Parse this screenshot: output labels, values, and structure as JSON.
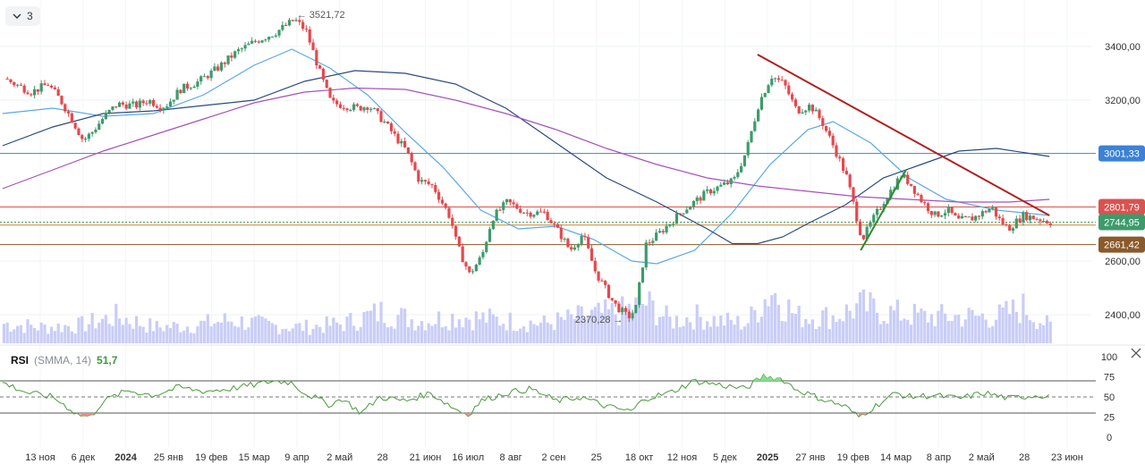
{
  "toolbar": {
    "collapse_count": "3",
    "collapse_icon": "chevron-down-icon"
  },
  "rsi": {
    "name": "RSI",
    "params": "(SMMA, 14)",
    "value": "51,7",
    "levels": [
      70,
      50,
      30
    ],
    "axis_ticks": [
      "100",
      "75",
      "50",
      "25",
      "0"
    ]
  },
  "colors": {
    "up": "#3d9b6b",
    "down": "#e5484d",
    "volume": "#c9cdf6",
    "ma_fast": "#5aa9e6",
    "ma_mid": "#2b4b7e",
    "ma_slow": "#a652b8",
    "rsi_line": "#4a9a3a",
    "trend_down": "#b21f1f",
    "trend_up": "#2e8b2e",
    "level_blue": "#3b82d6",
    "level_red": "#d9534f",
    "level_orange": "#d9822b",
    "level_brown": "#8b5a2b",
    "dotted": "#3d9b6b"
  },
  "chart_data": {
    "type": "line",
    "title": "",
    "y_ticks": [
      "3400,00",
      "3200,00",
      "2600,00",
      "2400,00"
    ],
    "y_tick_values": [
      3400,
      3200,
      2600,
      2400
    ],
    "x_ticks": [
      "13 ноя",
      "6 дек",
      "2024",
      "25 янв",
      "19 фев",
      "15 мар",
      "9 апр",
      "2 май",
      "28",
      "21 июн",
      "16 июл",
      "8 авг",
      "2 сен",
      "25",
      "18 окт",
      "12 ноя",
      "5 дек",
      "2025",
      "27 янв",
      "19 фев",
      "14 мар",
      "8 апр",
      "2 май",
      "28",
      "23 июн"
    ],
    "bold_ticks": [
      "2024",
      "2025"
    ],
    "price_labels": [
      {
        "value": 3001.33,
        "text": "3001,33",
        "style": "level-blue"
      },
      {
        "value": 2801.79,
        "text": "2801,79",
        "style": "level-red"
      },
      {
        "value": 2744.95,
        "text": "2744,95",
        "style": "current"
      },
      {
        "value": 2661.42,
        "text": "2661,42",
        "style": "level-brown"
      }
    ],
    "orange_level": 2734,
    "annotations": [
      {
        "text": "3521,72",
        "value": 3521.72,
        "kind": "high"
      },
      {
        "text": "2370,28",
        "value": 2370.28,
        "kind": "low"
      }
    ],
    "price_path": [
      [
        0,
        3280
      ],
      [
        2.2,
        3230
      ],
      [
        3.5,
        3260
      ],
      [
        4.5,
        3200
      ],
      [
        5.5,
        3120
      ],
      [
        6.3,
        3050
      ],
      [
        7,
        3080
      ],
      [
        8,
        3140
      ],
      [
        9,
        3185
      ],
      [
        10.5,
        3180
      ],
      [
        11.5,
        3200
      ],
      [
        12.5,
        3175
      ],
      [
        13,
        3185
      ],
      [
        14,
        3240
      ],
      [
        15.5,
        3270
      ],
      [
        17,
        3320
      ],
      [
        18.5,
        3380
      ],
      [
        20,
        3420
      ],
      [
        21.5,
        3450
      ],
      [
        23.1,
        3500
      ],
      [
        24,
        3460
      ],
      [
        24.5,
        3390
      ],
      [
        25.2,
        3290
      ],
      [
        26,
        3190
      ],
      [
        27,
        3180
      ],
      [
        28.1,
        3170
      ],
      [
        29,
        3180
      ],
      [
        30.2,
        3120
      ],
      [
        31,
        3070
      ],
      [
        32,
        3010
      ],
      [
        33,
        2900
      ],
      [
        34.1,
        2880
      ],
      [
        35.5,
        2760
      ],
      [
        36,
        2660
      ],
      [
        37,
        2550
      ],
      [
        38,
        2620
      ],
      [
        38.8,
        2760
      ],
      [
        40,
        2820
      ],
      [
        41.5,
        2780
      ],
      [
        43,
        2780
      ],
      [
        44.2,
        2700
      ],
      [
        45,
        2640
      ],
      [
        46,
        2700
      ],
      [
        47,
        2560
      ],
      [
        48.5,
        2440
      ],
      [
        49.6,
        2390
      ],
      [
        50.2,
        2420
      ],
      [
        51,
        2660
      ],
      [
        52,
        2700
      ],
      [
        54,
        2790
      ],
      [
        56,
        2860
      ],
      [
        57,
        2880
      ],
      [
        58,
        2900
      ],
      [
        59,
        3010
      ],
      [
        60,
        3190
      ],
      [
        61,
        3290
      ],
      [
        62,
        3260
      ],
      [
        63,
        3160
      ],
      [
        64.1,
        3180
      ],
      [
        65,
        3120
      ],
      [
        66,
        3020
      ],
      [
        67,
        2910
      ],
      [
        68.2,
        2680
      ],
      [
        69,
        2750
      ],
      [
        70,
        2830
      ],
      [
        71.3,
        2920
      ],
      [
        72,
        2890
      ],
      [
        73,
        2820
      ],
      [
        74,
        2770
      ],
      [
        75,
        2790
      ],
      [
        75.8,
        2750
      ],
      [
        77,
        2760
      ],
      [
        78.5,
        2800
      ],
      [
        79,
        2760
      ],
      [
        79.8,
        2720
      ],
      [
        81,
        2770
      ],
      [
        82,
        2760
      ],
      [
        83.2,
        2745
      ]
    ],
    "ma_fast": [
      [
        0,
        3150
      ],
      [
        4,
        3170
      ],
      [
        8,
        3140
      ],
      [
        12,
        3150
      ],
      [
        16,
        3220
      ],
      [
        20,
        3330
      ],
      [
        23,
        3390
      ],
      [
        26,
        3320
      ],
      [
        29,
        3220
      ],
      [
        32,
        3080
      ],
      [
        35,
        2950
      ],
      [
        38,
        2790
      ],
      [
        41,
        2720
      ],
      [
        44,
        2730
      ],
      [
        47,
        2680
      ],
      [
        50,
        2600
      ],
      [
        52,
        2590
      ],
      [
        55,
        2640
      ],
      [
        58,
        2780
      ],
      [
        61,
        2960
      ],
      [
        64,
        3090
      ],
      [
        66,
        3120
      ],
      [
        69,
        3040
      ],
      [
        72,
        2910
      ],
      [
        75,
        2830
      ],
      [
        79,
        2790
      ],
      [
        83.2,
        2770
      ]
    ],
    "ma_mid": [
      [
        0,
        3030
      ],
      [
        4,
        3100
      ],
      [
        8,
        3150
      ],
      [
        12,
        3160
      ],
      [
        16,
        3180
      ],
      [
        20,
        3200
      ],
      [
        24,
        3270
      ],
      [
        28,
        3310
      ],
      [
        32,
        3300
      ],
      [
        36,
        3260
      ],
      [
        40,
        3170
      ],
      [
        44,
        3040
      ],
      [
        48,
        2910
      ],
      [
        52,
        2820
      ],
      [
        56,
        2720
      ],
      [
        58,
        2665
      ],
      [
        60,
        2665
      ],
      [
        62,
        2690
      ],
      [
        64,
        2740
      ],
      [
        67,
        2810
      ],
      [
        70,
        2910
      ],
      [
        73,
        2960
      ],
      [
        76,
        3010
      ],
      [
        79,
        3020
      ],
      [
        83.2,
        2990
      ]
    ],
    "ma_slow": [
      [
        0,
        2870
      ],
      [
        4,
        2940
      ],
      [
        8,
        3010
      ],
      [
        12,
        3070
      ],
      [
        16,
        3130
      ],
      [
        20,
        3190
      ],
      [
        24,
        3230
      ],
      [
        28,
        3245
      ],
      [
        32,
        3240
      ],
      [
        36,
        3200
      ],
      [
        40,
        3150
      ],
      [
        44,
        3090
      ],
      [
        48,
        3020
      ],
      [
        52,
        2960
      ],
      [
        56,
        2910
      ],
      [
        60,
        2880
      ],
      [
        64,
        2860
      ],
      [
        68,
        2840
      ],
      [
        72,
        2830
      ],
      [
        76,
        2820
      ],
      [
        80,
        2820
      ],
      [
        83.2,
        2830
      ]
    ],
    "trendlines": [
      {
        "from": [
          60,
          3370
        ],
        "to": [
          83.2,
          2770
        ],
        "color": "trend_down"
      },
      {
        "from": [
          68.2,
          2640
        ],
        "to": [
          71.8,
          2940
        ],
        "color": "trend_up"
      }
    ],
    "rsi_path": [
      [
        0,
        68
      ],
      [
        2,
        55
      ],
      [
        4,
        50
      ],
      [
        6,
        28
      ],
      [
        7,
        25
      ],
      [
        8,
        45
      ],
      [
        10,
        58
      ],
      [
        12,
        52
      ],
      [
        14,
        62
      ],
      [
        16,
        57
      ],
      [
        18,
        60
      ],
      [
        20,
        65
      ],
      [
        21.5,
        70
      ],
      [
        23,
        68
      ],
      [
        24,
        55
      ],
      [
        25,
        48
      ],
      [
        26,
        40
      ],
      [
        27,
        48
      ],
      [
        28.5,
        30
      ],
      [
        30,
        50
      ],
      [
        32,
        45
      ],
      [
        34,
        55
      ],
      [
        36,
        35
      ],
      [
        37,
        28
      ],
      [
        38,
        45
      ],
      [
        40,
        55
      ],
      [
        42,
        60
      ],
      [
        44,
        45
      ],
      [
        46,
        50
      ],
      [
        48,
        38
      ],
      [
        50,
        32
      ],
      [
        51,
        48
      ],
      [
        53,
        55
      ],
      [
        55,
        70
      ],
      [
        57,
        65
      ],
      [
        59,
        60
      ],
      [
        60.5,
        76
      ],
      [
        62,
        72
      ],
      [
        63,
        60
      ],
      [
        65,
        48
      ],
      [
        67,
        38
      ],
      [
        68,
        25
      ],
      [
        69,
        35
      ],
      [
        71,
        55
      ],
      [
        72,
        50
      ],
      [
        74,
        52
      ],
      [
        76,
        48
      ],
      [
        78,
        55
      ],
      [
        80,
        48
      ],
      [
        82,
        52
      ],
      [
        83.2,
        51.7
      ]
    ],
    "volume_profile": [
      [
        0,
        22
      ],
      [
        3,
        18
      ],
      [
        6,
        20
      ],
      [
        9,
        30
      ],
      [
        12,
        18
      ],
      [
        15,
        20
      ],
      [
        18,
        26
      ],
      [
        21,
        20
      ],
      [
        24,
        18
      ],
      [
        27,
        22
      ],
      [
        30,
        35
      ],
      [
        33,
        25
      ],
      [
        36,
        30
      ],
      [
        38,
        28
      ],
      [
        40,
        25
      ],
      [
        43,
        22
      ],
      [
        46,
        30
      ],
      [
        49,
        35
      ],
      [
        51,
        45
      ],
      [
        53,
        25
      ],
      [
        55,
        30
      ],
      [
        57,
        25
      ],
      [
        59,
        22
      ],
      [
        61,
        60
      ],
      [
        63,
        30
      ],
      [
        66,
        30
      ],
      [
        68.2,
        42
      ],
      [
        70,
        35
      ],
      [
        73,
        30
      ],
      [
        76,
        30
      ],
      [
        79,
        30
      ],
      [
        81,
        40
      ],
      [
        83.2,
        18
      ]
    ]
  }
}
